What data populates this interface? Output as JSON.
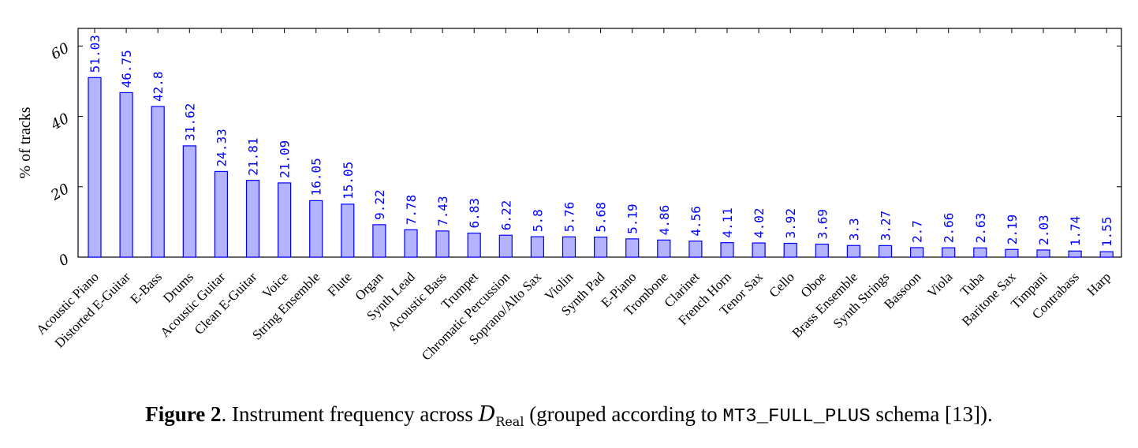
{
  "chart_data": {
    "type": "bar",
    "title": "",
    "xlabel": "",
    "ylabel": "% of tracks",
    "ylim": [
      0,
      65
    ],
    "yticks": [
      0,
      20,
      40,
      60
    ],
    "grid": false,
    "bar_color": "#b3b3ff",
    "bar_edge_color": "#0000ff",
    "label_color": "#0000ff",
    "categories": [
      "Acoustic Piano",
      "Distorted E-Guitar",
      "E-Bass",
      "Drums",
      "Acoustic Guitar",
      "Clean E-Guitar",
      "Voice",
      "String Ensemble",
      "Flute",
      "Organ",
      "Synth Lead",
      "Acoustic Bass",
      "Trumpet",
      "Chromatic Percussion",
      "Soprano/Alto Sax",
      "Violin",
      "Synth Pad",
      "E-Piano",
      "Trombone",
      "Clarinet",
      "French Horn",
      "Tenor Sax",
      "Cello",
      "Oboe",
      "Brass Ensemble",
      "Synth Strings",
      "Bassoon",
      "Viola",
      "Tuba",
      "Baritone Sax",
      "Timpani",
      "Contrabass",
      "Harp"
    ],
    "values": [
      51.03,
      46.75,
      42.8,
      31.62,
      24.33,
      21.81,
      21.09,
      16.05,
      15.05,
      9.22,
      7.78,
      7.43,
      6.83,
      6.22,
      5.8,
      5.76,
      5.68,
      5.19,
      4.86,
      4.56,
      4.11,
      4.02,
      3.92,
      3.69,
      3.3,
      3.27,
      2.7,
      2.66,
      2.63,
      2.19,
      2.03,
      1.74,
      1.55
    ],
    "value_labels": [
      "51.03",
      "46.75",
      "42.8",
      "31.62",
      "24.33",
      "21.81",
      "21.09",
      "16.05",
      "15.05",
      "9.22",
      "7.78",
      "7.43",
      "6.83",
      "6.22",
      "5.8",
      "5.76",
      "5.68",
      "5.19",
      "4.86",
      "4.56",
      "4.11",
      "4.02",
      "3.92",
      "3.69",
      "3.3",
      "3.27",
      "2.7",
      "2.66",
      "2.63",
      "2.19",
      "2.03",
      "1.74",
      "1.55"
    ]
  },
  "caption": {
    "label": "Figure 2",
    "text_before": ". Instrument frequency across ",
    "math_symbol": "D",
    "math_subscript": "Real",
    "text_middle": " (grouped according to ",
    "schema": "MT3_FULL_PLUS",
    "text_after": " schema [13])."
  }
}
